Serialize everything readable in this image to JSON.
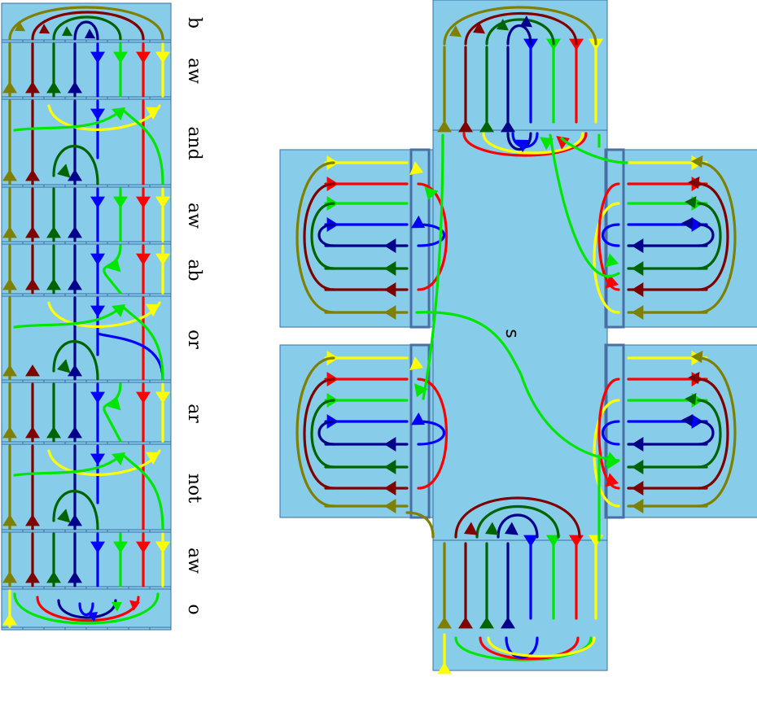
{
  "colors": {
    "olive": "#808000",
    "maroon": "#800000",
    "darkgreen": "#006400",
    "navy": "#00008b",
    "blue": "#0000ff",
    "green": "#00e600",
    "red": "#ff0000",
    "yellow": "#ffff00",
    "panel": "#87cdea",
    "border": "#3a6ea5"
  },
  "strip_labels": [
    {
      "text": "b",
      "color": "#000000"
    },
    {
      "text": "aw",
      "color": "#000000"
    },
    {
      "text": "and",
      "color": "#000000"
    },
    {
      "text": "aw",
      "color": "#000000"
    },
    {
      "text": "ab",
      "color": "#0000ff"
    },
    {
      "text": "or",
      "color": "#000000"
    },
    {
      "text": "ar",
      "color": "#ff0000"
    },
    {
      "text": "not",
      "color": "#000000"
    },
    {
      "text": "aw",
      "color": "#000000"
    },
    {
      "text": "o",
      "color": "#000000"
    }
  ],
  "center_label": "s"
}
